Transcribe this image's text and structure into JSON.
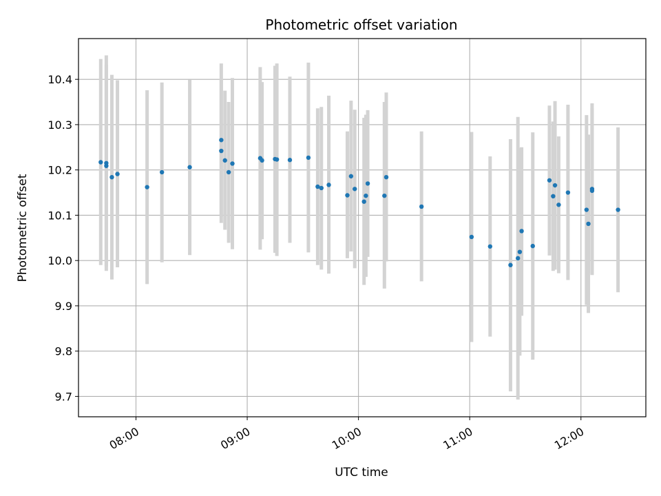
{
  "chart_data": {
    "type": "scatter",
    "title": "Photometric offset variation",
    "xlabel": "UTC time",
    "ylabel": "Photometric offset",
    "grid": true,
    "xlim": [
      "07:29",
      "12:35"
    ],
    "ylim": [
      9.655,
      10.49
    ],
    "xticks": [
      "08:00",
      "09:00",
      "10:00",
      "11:00",
      "12:00"
    ],
    "yticks": [
      9.7,
      9.8,
      9.9,
      10.0,
      10.1,
      10.2,
      10.3,
      10.4
    ],
    "ytick_labels": [
      "9.7",
      "9.8",
      "9.9",
      "10.0",
      "10.1",
      "10.2",
      "10.3",
      "10.4"
    ],
    "colors": {
      "point": "#1f77b4",
      "errorbar": "#d3d3d3",
      "grid": "#b0b0b0"
    },
    "points": [
      {
        "t": "07:41",
        "y": 10.217,
        "lo": 9.99,
        "hi": 10.445
      },
      {
        "t": "07:44",
        "y": 10.215,
        "lo": 9.977,
        "hi": 10.453
      },
      {
        "t": "07:44",
        "y": 10.209,
        "lo": 9.987,
        "hi": 10.432
      },
      {
        "t": "07:47",
        "y": 10.184,
        "lo": 9.958,
        "hi": 10.41
      },
      {
        "t": "07:50",
        "y": 10.191,
        "lo": 9.985,
        "hi": 10.398
      },
      {
        "t": "08:06",
        "y": 10.162,
        "lo": 9.948,
        "hi": 10.376
      },
      {
        "t": "08:14",
        "y": 10.195,
        "lo": 9.996,
        "hi": 10.393
      },
      {
        "t": "08:29",
        "y": 10.206,
        "lo": 10.012,
        "hi": 10.399
      },
      {
        "t": "08:46",
        "y": 10.266,
        "lo": 10.096,
        "hi": 10.435
      },
      {
        "t": "08:46",
        "y": 10.242,
        "lo": 10.083,
        "hi": 10.401
      },
      {
        "t": "08:48",
        "y": 10.221,
        "lo": 10.068,
        "hi": 10.375
      },
      {
        "t": "08:50",
        "y": 10.195,
        "lo": 10.039,
        "hi": 10.35
      },
      {
        "t": "08:52",
        "y": 10.214,
        "lo": 10.025,
        "hi": 10.403
      },
      {
        "t": "09:07",
        "y": 10.226,
        "lo": 10.024,
        "hi": 10.427
      },
      {
        "t": "09:08",
        "y": 10.221,
        "lo": 10.047,
        "hi": 10.394
      },
      {
        "t": "09:15",
        "y": 10.224,
        "lo": 10.017,
        "hi": 10.43
      },
      {
        "t": "09:16",
        "y": 10.223,
        "lo": 10.01,
        "hi": 10.435
      },
      {
        "t": "09:23",
        "y": 10.222,
        "lo": 10.039,
        "hi": 10.406
      },
      {
        "t": "09:33",
        "y": 10.227,
        "lo": 10.018,
        "hi": 10.437
      },
      {
        "t": "09:38",
        "y": 10.163,
        "lo": 9.99,
        "hi": 10.336
      },
      {
        "t": "09:40",
        "y": 10.16,
        "lo": 9.98,
        "hi": 10.339
      },
      {
        "t": "09:44",
        "y": 10.167,
        "lo": 9.971,
        "hi": 10.364
      },
      {
        "t": "09:54",
        "y": 10.144,
        "lo": 10.005,
        "hi": 10.285
      },
      {
        "t": "09:56",
        "y": 10.186,
        "lo": 10.02,
        "hi": 10.353
      },
      {
        "t": "09:58",
        "y": 10.158,
        "lo": 9.983,
        "hi": 10.333
      },
      {
        "t": "10:03",
        "y": 10.13,
        "lo": 9.946,
        "hi": 10.315
      },
      {
        "t": "10:04",
        "y": 10.143,
        "lo": 9.964,
        "hi": 10.322
      },
      {
        "t": "10:05",
        "y": 10.17,
        "lo": 10.008,
        "hi": 10.332
      },
      {
        "t": "10:14",
        "y": 10.143,
        "lo": 9.938,
        "hi": 10.35
      },
      {
        "t": "10:15",
        "y": 10.184,
        "lo": 9.998,
        "hi": 10.371
      },
      {
        "t": "10:34",
        "y": 10.119,
        "lo": 9.954,
        "hi": 10.285
      },
      {
        "t": "11:01",
        "y": 10.052,
        "lo": 9.82,
        "hi": 10.284
      },
      {
        "t": "11:11",
        "y": 10.031,
        "lo": 9.832,
        "hi": 10.23
      },
      {
        "t": "11:22",
        "y": 9.99,
        "lo": 9.711,
        "hi": 10.268
      },
      {
        "t": "11:26",
        "y": 10.005,
        "lo": 9.693,
        "hi": 10.317
      },
      {
        "t": "11:27",
        "y": 10.019,
        "lo": 9.79,
        "hi": 10.249
      },
      {
        "t": "11:28",
        "y": 10.065,
        "lo": 9.878,
        "hi": 10.25
      },
      {
        "t": "11:34",
        "y": 10.032,
        "lo": 9.781,
        "hi": 10.283
      },
      {
        "t": "11:43",
        "y": 10.177,
        "lo": 10.011,
        "hi": 10.342
      },
      {
        "t": "11:45",
        "y": 10.142,
        "lo": 9.977,
        "hi": 10.307
      },
      {
        "t": "11:46",
        "y": 10.166,
        "lo": 9.98,
        "hi": 10.352
      },
      {
        "t": "11:48",
        "y": 10.123,
        "lo": 9.972,
        "hi": 10.274
      },
      {
        "t": "11:53",
        "y": 10.15,
        "lo": 9.957,
        "hi": 10.344
      },
      {
        "t": "12:03",
        "y": 10.112,
        "lo": 9.902,
        "hi": 10.321
      },
      {
        "t": "12:04",
        "y": 10.081,
        "lo": 9.884,
        "hi": 10.278
      },
      {
        "t": "12:06",
        "y": 10.158,
        "lo": 9.968,
        "hi": 10.347
      },
      {
        "t": "12:06",
        "y": 10.154,
        "lo": 9.971,
        "hi": 10.336
      },
      {
        "t": "12:20",
        "y": 10.112,
        "lo": 9.93,
        "hi": 10.294
      }
    ]
  }
}
